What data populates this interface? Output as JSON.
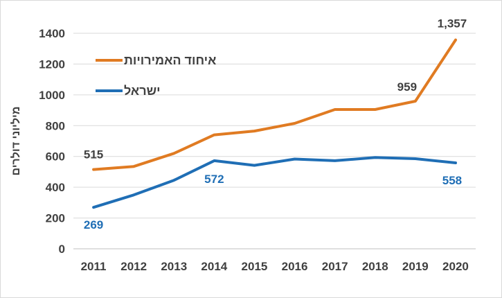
{
  "chart_data": {
    "type": "line",
    "title": "",
    "xlabel": "",
    "ylabel": "מיליוני דולרים",
    "ylim": [
      0,
      1400
    ],
    "yticks": [
      0,
      200,
      400,
      600,
      800,
      1000,
      1200,
      1400
    ],
    "ytick_labels": [
      "0",
      "200",
      "400",
      "600",
      "800",
      "1000",
      "1200",
      "1400"
    ],
    "categories": [
      "2011",
      "2012",
      "2013",
      "2014",
      "2015",
      "2016",
      "2017",
      "2018",
      "2019",
      "2020"
    ],
    "grid": true,
    "legend_position": "top-left",
    "series": [
      {
        "name": "איחוד האמירויות",
        "color": "#E07B22",
        "values": [
          515,
          535,
          620,
          740,
          765,
          815,
          905,
          905,
          959,
          1357
        ],
        "labels": [
          {
            "index": 0,
            "text": "515",
            "color": "#404040"
          },
          {
            "index": 8,
            "text": "959",
            "color": "#404040"
          },
          {
            "index": 9,
            "text": "1,357",
            "color": "#404040"
          }
        ]
      },
      {
        "name": "ישראל",
        "color": "#1F6EB5",
        "values": [
          269,
          350,
          445,
          572,
          542,
          583,
          572,
          593,
          585,
          558
        ],
        "labels": [
          {
            "index": 0,
            "text": "269",
            "color": "#1F6EB5"
          },
          {
            "index": 3,
            "text": "572",
            "color": "#1F6EB5"
          },
          {
            "index": 9,
            "text": "558",
            "color": "#1F6EB5"
          }
        ]
      }
    ]
  }
}
